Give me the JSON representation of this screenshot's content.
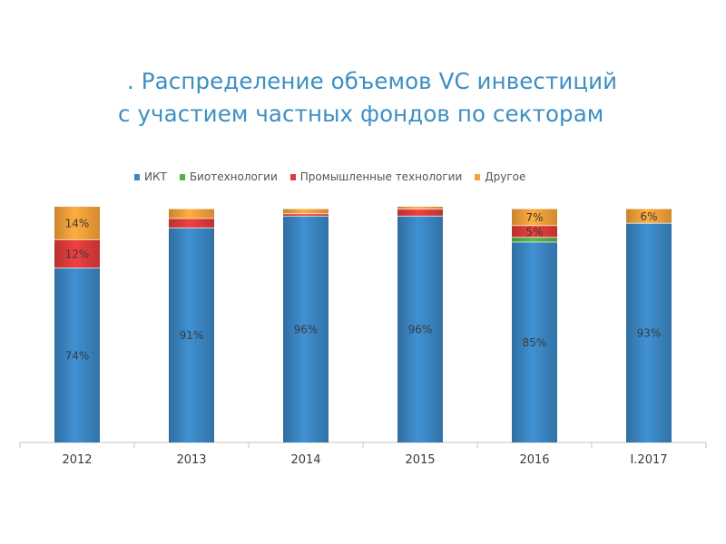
{
  "title_line1": ". Распределение объемов VC инвестиций",
  "title_line2": "с участием частных фондов по секторам",
  "legend": [
    {
      "label": "ИКТ",
      "color": "#3b86c3"
    },
    {
      "label": "Биотехнологии",
      "color": "#55b047"
    },
    {
      "label": "Промышленные технологии",
      "color": "#df3b3b"
    },
    {
      "label": "Другое",
      "color": "#f7a139"
    }
  ],
  "chart_data": {
    "type": "bar",
    "stacked": true,
    "categories": [
      "2012",
      "2013",
      "2014",
      "2015",
      "2016",
      "I.2017"
    ],
    "series": [
      {
        "name": "ИКТ",
        "color": "#3b86c3",
        "values": [
          74,
          91,
          96,
          96,
          85,
          93
        ],
        "labels": [
          "74%",
          "91%",
          "96%",
          "96%",
          "85%",
          "93%"
        ]
      },
      {
        "name": "Биотехнологии",
        "color": "#55b047",
        "values": [
          0,
          0,
          0,
          0,
          2,
          0
        ],
        "labels": [
          "",
          "",
          "",
          "",
          "",
          ""
        ]
      },
      {
        "name": "Промышленные технологии",
        "color": "#df3b3b",
        "values": [
          12,
          4,
          1,
          3,
          5,
          0
        ],
        "labels": [
          "12%",
          "",
          "",
          "",
          "5%",
          ""
        ]
      },
      {
        "name": "Другое",
        "color": "#f7a139",
        "values": [
          14,
          4,
          2,
          1,
          7,
          6
        ],
        "labels": [
          "14%",
          "",
          "",
          "",
          "7%",
          "6%"
        ]
      }
    ],
    "ylim": [
      0,
      100
    ],
    "grid": false,
    "legend_position": "top"
  }
}
